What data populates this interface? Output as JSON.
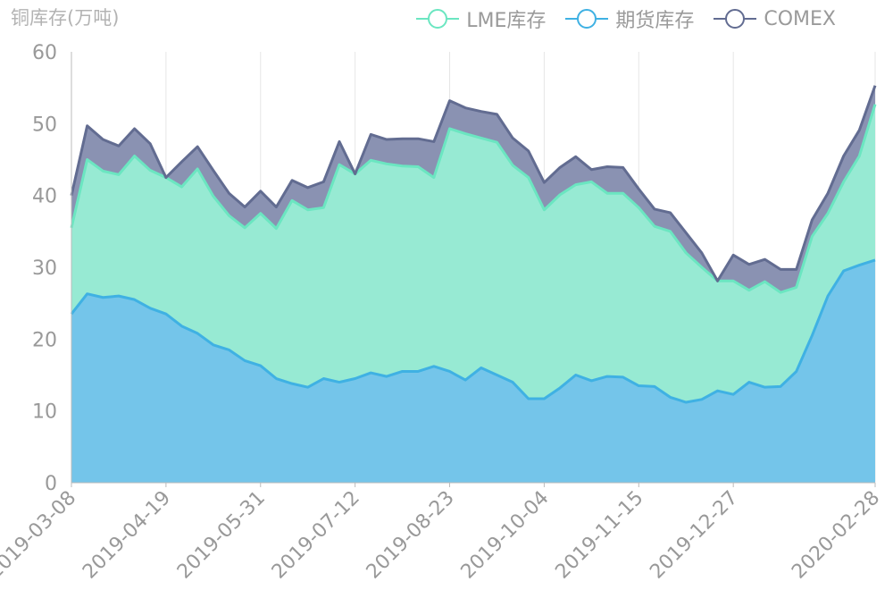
{
  "chart_data": {
    "type": "area",
    "title": "铜库存(万吨)",
    "ylim": [
      0,
      60
    ],
    "yticks": [
      0,
      10,
      20,
      30,
      40,
      50,
      60
    ],
    "grid": "vertical",
    "legend_position": "top-right",
    "x_tick_labels": [
      "2019-03-08",
      "2019-04-19",
      "2019-05-31",
      "2019-07-12",
      "2019-08-23",
      "2019-10-04",
      "2019-11-15",
      "2019-12-27",
      "2020-02-28"
    ],
    "x": [
      "2019-03-08",
      "2019-03-15",
      "2019-03-22",
      "2019-03-29",
      "2019-04-05",
      "2019-04-12",
      "2019-04-19",
      "2019-04-26",
      "2019-05-03",
      "2019-05-10",
      "2019-05-17",
      "2019-05-24",
      "2019-05-31",
      "2019-06-07",
      "2019-06-14",
      "2019-06-21",
      "2019-06-28",
      "2019-07-05",
      "2019-07-12",
      "2019-07-19",
      "2019-07-26",
      "2019-08-02",
      "2019-08-09",
      "2019-08-16",
      "2019-08-23",
      "2019-08-30",
      "2019-09-06",
      "2019-09-13",
      "2019-09-20",
      "2019-09-27",
      "2019-10-04",
      "2019-10-11",
      "2019-10-18",
      "2019-10-25",
      "2019-11-01",
      "2019-11-08",
      "2019-11-15",
      "2019-11-22",
      "2019-11-29",
      "2019-12-06",
      "2019-12-13",
      "2019-12-20",
      "2019-12-27",
      "2020-01-03",
      "2020-01-10",
      "2020-01-17",
      "2020-01-24",
      "2020-01-31",
      "2020-02-07",
      "2020-02-14",
      "2020-02-21",
      "2020-02-28"
    ],
    "series": [
      {
        "name": "期货库存",
        "color": "#3fb1e3",
        "fill": "#74c5ea",
        "values": [
          23.5,
          26.3,
          25.8,
          26.0,
          25.5,
          24.3,
          23.5,
          21.8,
          20.8,
          19.2,
          18.5,
          17.0,
          16.3,
          14.5,
          13.8,
          13.3,
          14.5,
          14.0,
          14.5,
          15.3,
          14.8,
          15.5,
          15.5,
          16.2,
          15.5,
          14.3,
          16.0,
          15.0,
          14.0,
          11.7,
          11.7,
          13.2,
          15.0,
          14.2,
          14.8,
          14.7,
          13.5,
          13.4,
          11.9,
          11.2,
          11.6,
          12.8,
          12.3,
          14.0,
          13.3,
          13.4,
          15.5,
          20.5,
          26.0,
          29.5,
          30.3,
          31.0
        ]
      },
      {
        "name": "LME库存",
        "color": "#6be6c1",
        "fill": "#97ead3",
        "values": [
          12.0,
          18.7,
          17.6,
          16.9,
          20.0,
          19.2,
          19.0,
          19.4,
          22.9,
          20.7,
          18.7,
          18.5,
          21.2,
          20.9,
          25.5,
          24.7,
          23.8,
          30.3,
          28.5,
          29.6,
          29.6,
          28.6,
          28.5,
          26.3,
          33.8,
          34.3,
          32.0,
          32.4,
          30.2,
          30.8,
          26.3,
          26.9,
          26.5,
          27.7,
          25.5,
          25.6,
          24.8,
          22.3,
          23.1,
          20.8,
          18.4,
          15.3,
          15.8,
          12.8,
          14.7,
          13.1,
          11.7,
          13.8,
          11.5,
          12.4,
          15.2,
          21.7
        ]
      },
      {
        "name": "COMEX",
        "color": "#626c91",
        "fill": "#8a92b2",
        "values": [
          4.5,
          4.7,
          4.4,
          4.0,
          3.8,
          3.7,
          0.0,
          3.5,
          3.1,
          3.6,
          3.1,
          2.9,
          3.1,
          3.0,
          2.8,
          3.1,
          3.6,
          3.2,
          0.0,
          3.6,
          3.4,
          3.8,
          3.9,
          5.0,
          3.9,
          3.6,
          3.7,
          3.9,
          3.8,
          3.7,
          3.8,
          3.8,
          3.9,
          1.7,
          3.7,
          3.6,
          2.6,
          2.4,
          2.6,
          2.8,
          2.0,
          0.0,
          3.6,
          3.6,
          3.1,
          3.2,
          2.5,
          2.3,
          2.8,
          3.6,
          3.6,
          2.6
        ]
      }
    ]
  }
}
